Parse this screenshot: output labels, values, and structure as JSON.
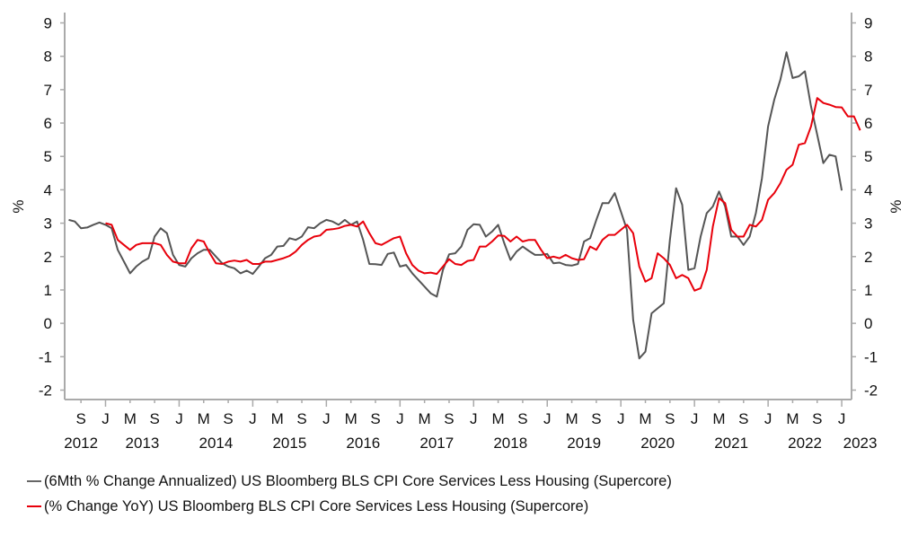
{
  "chart_data": {
    "type": "line",
    "title": "",
    "ylabel_left": "%",
    "ylabel_right": "%",
    "ylim": [
      -2,
      9
    ],
    "yticks": [
      -2,
      -1,
      0,
      1,
      2,
      3,
      4,
      5,
      6,
      7,
      8,
      9
    ],
    "grid": false,
    "legend_position": "bottom",
    "x_start": "2012-07",
    "x_frequency": "monthly",
    "x_month_ticks": [
      {
        "label": "S",
        "month_index": 2
      },
      {
        "label": "J",
        "month_index": 6
      },
      {
        "label": "M",
        "month_index": 10
      },
      {
        "label": "S",
        "month_index": 14
      },
      {
        "label": "J",
        "month_index": 18
      },
      {
        "label": "M",
        "month_index": 22
      },
      {
        "label": "S",
        "month_index": 26
      },
      {
        "label": "J",
        "month_index": 30
      },
      {
        "label": "M",
        "month_index": 34
      },
      {
        "label": "S",
        "month_index": 38
      },
      {
        "label": "J",
        "month_index": 42
      },
      {
        "label": "M",
        "month_index": 46
      },
      {
        "label": "S",
        "month_index": 50
      },
      {
        "label": "J",
        "month_index": 54
      },
      {
        "label": "M",
        "month_index": 58
      },
      {
        "label": "S",
        "month_index": 62
      },
      {
        "label": "J",
        "month_index": 66
      },
      {
        "label": "M",
        "month_index": 70
      },
      {
        "label": "S",
        "month_index": 74
      },
      {
        "label": "J",
        "month_index": 78
      },
      {
        "label": "M",
        "month_index": 82
      },
      {
        "label": "S",
        "month_index": 86
      },
      {
        "label": "J",
        "month_index": 90
      },
      {
        "label": "M",
        "month_index": 94
      },
      {
        "label": "S",
        "month_index": 98
      },
      {
        "label": "J",
        "month_index": 102
      },
      {
        "label": "M",
        "month_index": 106
      },
      {
        "label": "S",
        "month_index": 110
      },
      {
        "label": "J",
        "month_index": 114
      },
      {
        "label": "M",
        "month_index": 118
      },
      {
        "label": "S",
        "month_index": 122
      },
      {
        "label": "J",
        "month_index": 126
      }
    ],
    "x_year_labels": [
      {
        "label": "2012",
        "month_index": 2
      },
      {
        "label": "2013",
        "month_index": 12
      },
      {
        "label": "2014",
        "month_index": 24
      },
      {
        "label": "2015",
        "month_index": 36
      },
      {
        "label": "2016",
        "month_index": 48
      },
      {
        "label": "2017",
        "month_index": 60
      },
      {
        "label": "2018",
        "month_index": 72
      },
      {
        "label": "2019",
        "month_index": 84
      },
      {
        "label": "2020",
        "month_index": 96
      },
      {
        "label": "2021",
        "month_index": 108
      },
      {
        "label": "2022",
        "month_index": 120
      },
      {
        "label": "2023",
        "month_index": 129
      }
    ],
    "series": [
      {
        "name": "(6Mth % Change Annualized) US Bloomberg BLS CPI Core Services Less Housing (Supercore)",
        "color": "#555555",
        "start_index": 0,
        "values": [
          3.1,
          3.05,
          2.85,
          2.87,
          2.95,
          3.02,
          2.95,
          2.85,
          2.2,
          1.85,
          1.5,
          1.7,
          1.85,
          1.95,
          2.6,
          2.85,
          2.7,
          2.05,
          1.75,
          1.7,
          1.95,
          2.1,
          2.2,
          2.2,
          2.0,
          1.8,
          1.7,
          1.65,
          1.5,
          1.58,
          1.48,
          1.7,
          1.95,
          2.05,
          2.3,
          2.32,
          2.55,
          2.5,
          2.6,
          2.88,
          2.85,
          3.0,
          3.1,
          3.05,
          2.95,
          3.1,
          2.95,
          3.05,
          2.5,
          1.78,
          1.77,
          1.75,
          2.08,
          2.12,
          1.7,
          1.75,
          1.5,
          1.3,
          1.1,
          0.9,
          0.8,
          1.6,
          2.07,
          2.1,
          2.3,
          2.8,
          2.97,
          2.95,
          2.6,
          2.75,
          2.95,
          2.4,
          1.9,
          2.15,
          2.3,
          2.17,
          2.05,
          2.05,
          2.08,
          1.8,
          1.82,
          1.75,
          1.73,
          1.78,
          2.45,
          2.55,
          3.1,
          3.6,
          3.6,
          3.9,
          3.35,
          2.8,
          0.1,
          -1.05,
          -0.85,
          0.3,
          0.45,
          0.6,
          2.5,
          4.05,
          3.55,
          1.6,
          1.65,
          2.6,
          3.3,
          3.5,
          3.95,
          3.5,
          2.6,
          2.6,
          2.35,
          2.6,
          3.3,
          4.35,
          5.9,
          6.7,
          7.3,
          8.12,
          7.35,
          7.4,
          7.55,
          6.5,
          5.65,
          4.8,
          5.05,
          5.0,
          3.98
        ]
      },
      {
        "name": "(% Change YoY) US Bloomberg BLS CPI Core Services Less Housing (Supercore)",
        "color": "#e8000b",
        "start_index": 6,
        "values": [
          3.0,
          2.95,
          2.5,
          2.35,
          2.2,
          2.35,
          2.4,
          2.4,
          2.4,
          2.35,
          2.05,
          1.85,
          1.8,
          1.8,
          2.25,
          2.5,
          2.45,
          2.1,
          1.8,
          1.78,
          1.85,
          1.88,
          1.85,
          1.9,
          1.78,
          1.78,
          1.85,
          1.85,
          1.9,
          1.95,
          2.02,
          2.15,
          2.35,
          2.5,
          2.6,
          2.63,
          2.8,
          2.82,
          2.85,
          2.92,
          2.95,
          2.9,
          3.05,
          2.7,
          2.4,
          2.35,
          2.45,
          2.55,
          2.6,
          2.1,
          1.75,
          1.58,
          1.5,
          1.52,
          1.48,
          1.7,
          1.92,
          1.78,
          1.75,
          1.87,
          1.9,
          2.3,
          2.3,
          2.45,
          2.63,
          2.62,
          2.45,
          2.6,
          2.45,
          2.5,
          2.5,
          2.2,
          1.95,
          2.0,
          1.95,
          2.05,
          1.95,
          1.9,
          1.92,
          2.3,
          2.2,
          2.5,
          2.65,
          2.65,
          2.8,
          2.95,
          2.7,
          1.7,
          1.25,
          1.35,
          2.1,
          1.95,
          1.75,
          1.35,
          1.45,
          1.35,
          0.98,
          1.05,
          1.6,
          2.9,
          3.75,
          3.6,
          2.8,
          2.6,
          2.6,
          2.95,
          2.9,
          3.1,
          3.7,
          3.9,
          4.2,
          4.6,
          4.75,
          5.35,
          5.4,
          5.9,
          6.75,
          6.6,
          6.55,
          6.48,
          6.47,
          6.2,
          6.2,
          5.78
        ]
      }
    ]
  },
  "legend": {
    "items": [
      {
        "label": "(6Mth % Change Annualized) US Bloomberg BLS CPI Core Services Less Housing (Supercore)",
        "color": "#555555"
      },
      {
        "label": "(% Change YoY) US Bloomberg BLS CPI Core Services Less Housing (Supercore)",
        "color": "#e8000b"
      }
    ]
  }
}
